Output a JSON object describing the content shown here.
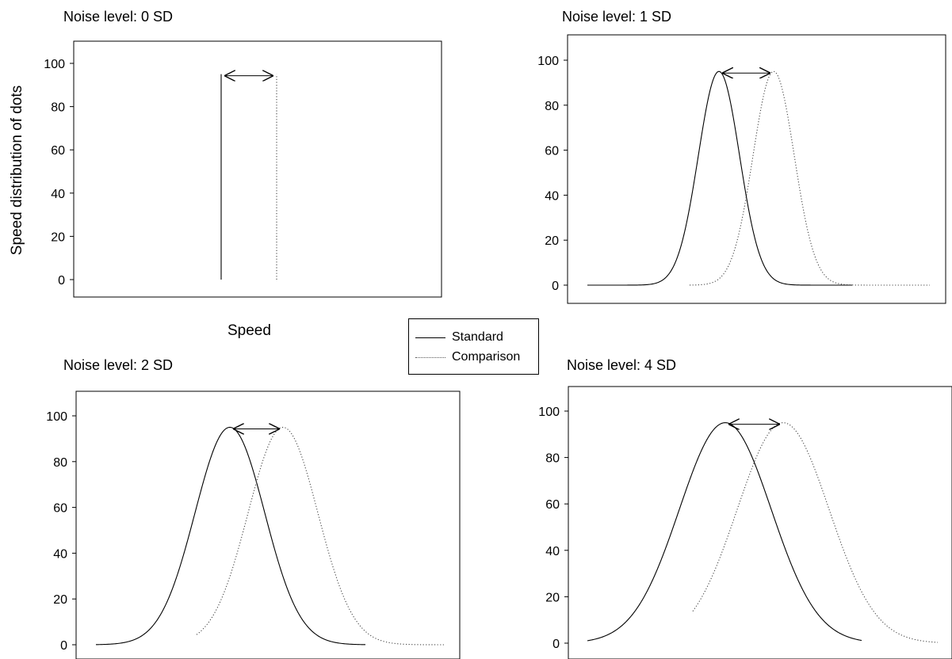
{
  "ylabel": "Speed distribution of dots",
  "xlabel": "Speed",
  "legend": {
    "standard_label": "Standard",
    "comparison_label": "Comparison"
  },
  "chart_data": [
    {
      "type": "line",
      "title": "Noise level: 0 SD",
      "noise_sd": 0,
      "ylabel": "Speed distribution of dots",
      "xlabel": "Speed",
      "ylim": [
        -8,
        110
      ],
      "yticks": [
        0,
        20,
        40,
        60,
        80,
        100
      ],
      "peak": 95,
      "series": [
        {
          "name": "Standard",
          "style": "solid",
          "center": 0,
          "sd": 0
        },
        {
          "name": "Comparison",
          "style": "dotted",
          "center": 1,
          "sd": 0
        }
      ]
    },
    {
      "type": "line",
      "title": "Noise level: 1 SD",
      "noise_sd": 1,
      "ylim": [
        -8,
        110
      ],
      "yticks": [
        0,
        20,
        40,
        60,
        80,
        100
      ],
      "peak": 95,
      "series": [
        {
          "name": "Standard",
          "style": "solid",
          "center": 0,
          "sd": 1
        },
        {
          "name": "Comparison",
          "style": "dotted",
          "center": 1,
          "sd": 1
        }
      ]
    },
    {
      "type": "line",
      "title": "Noise level: 2 SD",
      "noise_sd": 2,
      "ylim": [
        -8,
        110
      ],
      "yticks": [
        0,
        20,
        40,
        60,
        80,
        100
      ],
      "peak": 95,
      "series": [
        {
          "name": "Standard",
          "style": "solid",
          "center": 0,
          "sd": 2
        },
        {
          "name": "Comparison",
          "style": "dotted",
          "center": 1,
          "sd": 2
        }
      ]
    },
    {
      "type": "line",
      "title": "Noise level: 4 SD",
      "noise_sd": 4,
      "ylim": [
        -8,
        110
      ],
      "yticks": [
        0,
        20,
        40,
        60,
        80,
        100
      ],
      "peak": 95,
      "series": [
        {
          "name": "Standard",
          "style": "solid",
          "center": 0,
          "sd": 4
        },
        {
          "name": "Comparison",
          "style": "dotted",
          "center": 1,
          "sd": 4
        }
      ]
    }
  ]
}
